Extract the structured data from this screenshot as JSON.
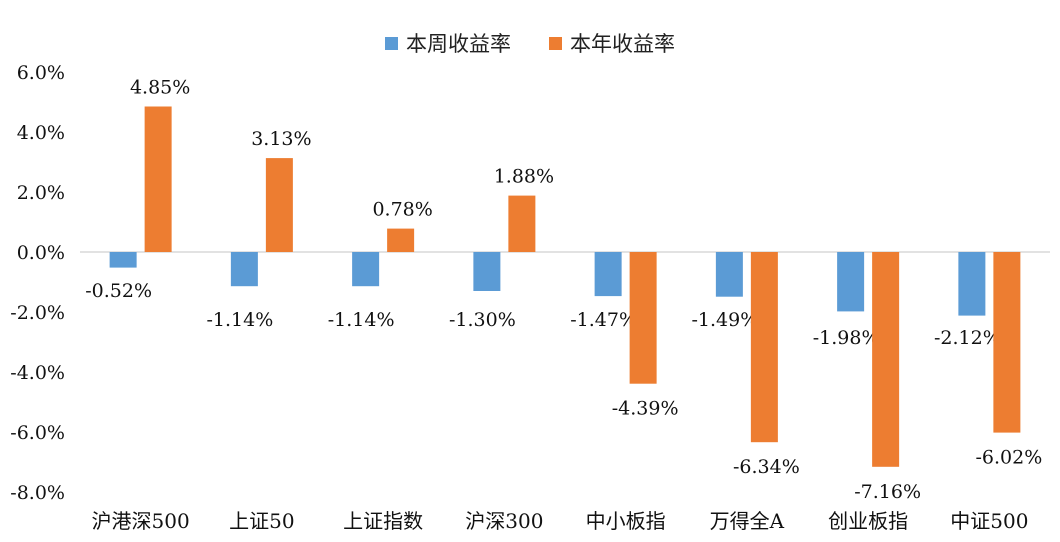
{
  "chart_data": {
    "type": "bar",
    "categories": [
      "沪港深500",
      "上证50",
      "上证指数",
      "沪深300",
      "中小板指",
      "万得全A",
      "创业板指",
      "中证500"
    ],
    "series": [
      {
        "name": "本周收益率",
        "color": "#5B9BD5",
        "values": [
          -0.52,
          -1.14,
          -1.14,
          -1.3,
          -1.47,
          -1.49,
          -1.98,
          -2.12
        ],
        "labels": [
          "-0.52%",
          "-1.14%",
          "-1.14%",
          "-1.30%",
          "-1.47%",
          "-1.49%",
          "-1.98%",
          "-2.12%"
        ]
      },
      {
        "name": "本年收益率",
        "color": "#ED7D31",
        "values": [
          4.85,
          3.13,
          0.78,
          1.88,
          -4.39,
          -6.34,
          -7.16,
          -6.02
        ],
        "labels": [
          "4.85%",
          "3.13%",
          "0.78%",
          "1.88%",
          "-4.39%",
          "-6.34%",
          "-7.16%",
          "-6.02%"
        ]
      }
    ],
    "y_ticks": [
      "6.0%",
      "4.0%",
      "2.0%",
      "0.0%",
      "-2.0%",
      "-4.0%",
      "-6.0%",
      "-8.0%"
    ],
    "y_tick_values": [
      6,
      4,
      2,
      0,
      -2,
      -4,
      -6,
      -8
    ],
    "ylim": [
      -8,
      6
    ],
    "title": "",
    "xlabel": "",
    "ylabel": "",
    "legend_position": "top",
    "grid": false
  }
}
